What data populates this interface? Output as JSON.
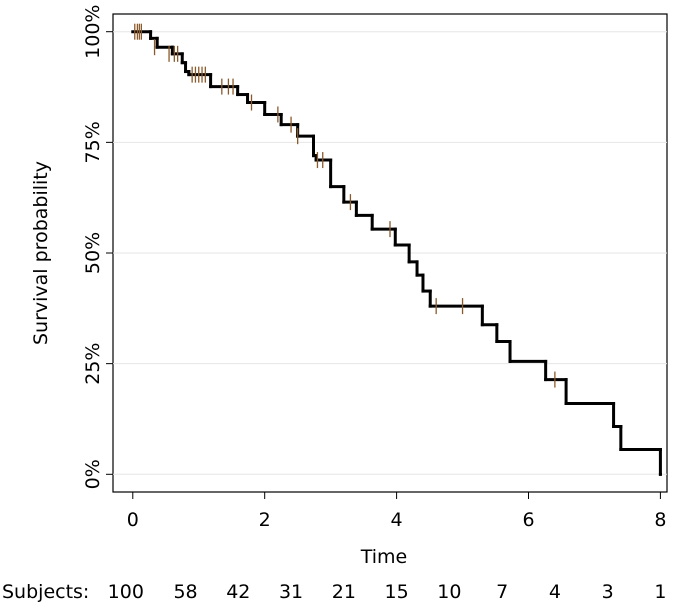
{
  "chart_data": {
    "type": "step",
    "x_label": "Time",
    "y_label": "Survival probability",
    "x": [
      0,
      0.27,
      0.37,
      0.6,
      0.75,
      0.8,
      0.85,
      1.18,
      1.59,
      1.74,
      2.0,
      2.25,
      2.5,
      2.74,
      2.78,
      3.0,
      3.2,
      3.39,
      3.63,
      3.98,
      4.19,
      4.31,
      4.4,
      4.51,
      5.3,
      5.52,
      5.72,
      6.26,
      6.57,
      7.29,
      7.4,
      8
    ],
    "values": [
      100,
      98.5,
      96.5,
      95,
      93,
      91,
      90.3,
      87.6,
      85.8,
      84,
      81.3,
      79,
      76.4,
      72,
      71,
      65,
      61.5,
      58.5,
      55.4,
      51.8,
      48,
      45,
      41.4,
      38,
      33.8,
      30,
      25.5,
      21.4,
      16,
      10.8,
      5.6,
      0
    ],
    "color": "#000000",
    "censored": {
      "x": [
        0.03,
        0.07,
        0.1,
        0.13,
        0.33,
        0.55,
        0.63,
        0.68,
        0.9,
        0.95,
        1.0,
        1.05,
        1.1,
        1.35,
        1.45,
        1.52,
        1.8,
        2.2,
        2.4,
        2.5,
        2.8,
        2.88,
        3.3,
        3.9,
        4.6,
        5.0,
        6.4
      ],
      "values": [
        100,
        100,
        100,
        100,
        96.5,
        95,
        95,
        95,
        90.3,
        90.3,
        90.3,
        90.3,
        90.3,
        87.6,
        87.6,
        87.6,
        84,
        81.3,
        79,
        76.4,
        71,
        71,
        61.5,
        55.4,
        38,
        38,
        21.4
      ],
      "color": "#8b5a2b"
    },
    "xlim": [
      -0.3,
      8.1
    ],
    "xticks": [
      0,
      2,
      4,
      6,
      8
    ],
    "ylim": [
      -4,
      104
    ],
    "yticks": [
      {
        "value": 0,
        "label": "0%"
      },
      {
        "value": 25,
        "label": "25%"
      },
      {
        "value": 50,
        "label": "50%"
      },
      {
        "value": 75,
        "label": "75%"
      },
      {
        "value": 100,
        "label": "100%"
      }
    ],
    "grid": true,
    "risk_table": {
      "label": "Subjects:",
      "counts": [
        100,
        58,
        42,
        31,
        21,
        15,
        10,
        7,
        4,
        3,
        1
      ]
    }
  }
}
